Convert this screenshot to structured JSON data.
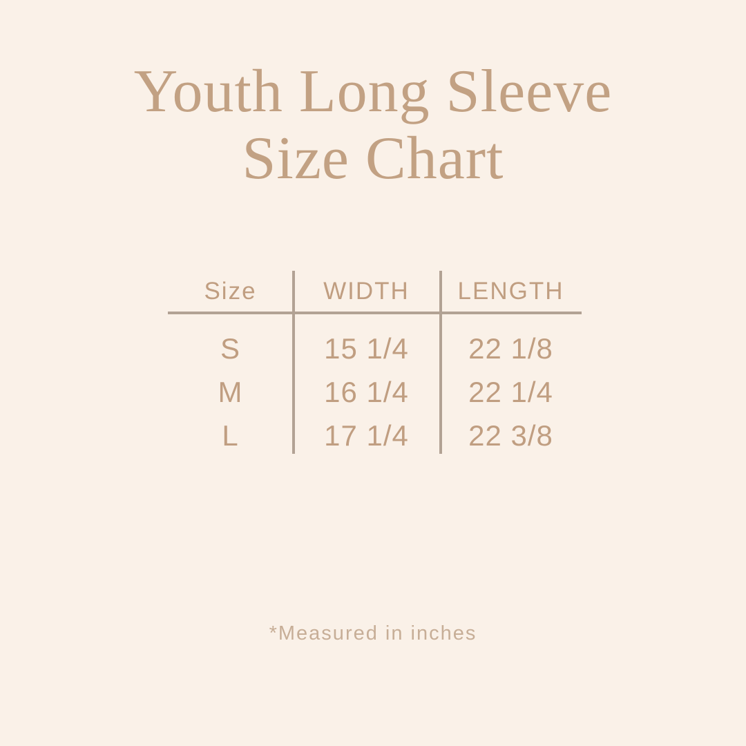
{
  "colors": {
    "background": "#faf1e8",
    "title_text": "#c2a183",
    "table_text": "#c09e81",
    "divider_line": "#b2a294",
    "footnote_text": "#c7ae97"
  },
  "title": {
    "line1": "Youth Long Sleeve",
    "line2": "Size Chart"
  },
  "chart_data": {
    "type": "table",
    "title": "Youth Long Sleeve Size Chart",
    "columns": [
      "Size",
      "WIDTH",
      "LENGTH"
    ],
    "rows": [
      [
        "S",
        "15 1/4",
        "22 1/8"
      ],
      [
        "M",
        "16 1/4",
        "22 1/4"
      ],
      [
        "L",
        "17 1/4",
        "22 3/8"
      ]
    ],
    "note": "*Measured in inches",
    "units": "inches"
  }
}
